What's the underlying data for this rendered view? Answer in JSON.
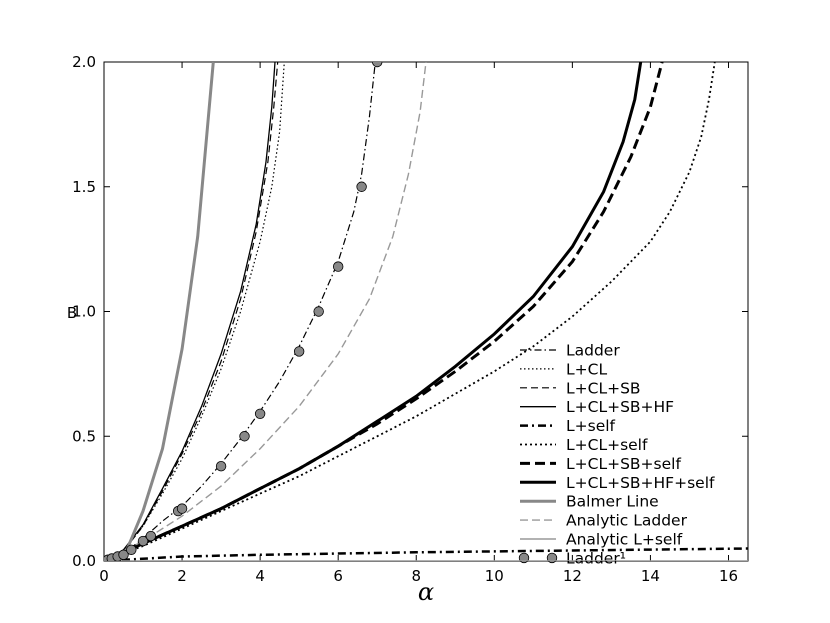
{
  "chart_data": {
    "type": "line",
    "xlabel": "α",
    "ylabel": "B",
    "xlim": [
      0,
      16.5
    ],
    "ylim": [
      0,
      2.0
    ],
    "x_ticks": [
      "0",
      "2",
      "4",
      "6",
      "8",
      "10",
      "12",
      "14",
      "16"
    ],
    "y_ticks": [
      "0.0",
      "0.5",
      "1.0",
      "1.5",
      "2.0"
    ],
    "grid": false,
    "legend_position": "bottom-right",
    "series": [
      {
        "name": "Ladder",
        "style": "dashdot-thin",
        "color": "#000000",
        "points": [
          [
            0,
            0
          ],
          [
            0.5,
            0.03
          ],
          [
            1,
            0.09
          ],
          [
            1.5,
            0.16
          ],
          [
            2,
            0.22
          ],
          [
            2.5,
            0.3
          ],
          [
            3,
            0.39
          ],
          [
            3.5,
            0.49
          ],
          [
            4,
            0.6
          ],
          [
            4.5,
            0.72
          ],
          [
            5,
            0.86
          ],
          [
            5.5,
            1.02
          ],
          [
            6,
            1.2
          ],
          [
            6.4,
            1.4
          ],
          [
            6.6,
            1.55
          ],
          [
            6.8,
            1.78
          ],
          [
            6.95,
            2.0
          ]
        ]
      },
      {
        "name": "L+CL",
        "style": "dotted-thin",
        "color": "#000000",
        "points": [
          [
            0,
            0
          ],
          [
            0.5,
            0.04
          ],
          [
            1,
            0.14
          ],
          [
            1.5,
            0.27
          ],
          [
            2,
            0.41
          ],
          [
            2.5,
            0.58
          ],
          [
            3,
            0.77
          ],
          [
            3.5,
            1.0
          ],
          [
            4,
            1.28
          ],
          [
            4.3,
            1.5
          ],
          [
            4.5,
            1.72
          ],
          [
            4.62,
            2.0
          ]
        ]
      },
      {
        "name": "L+CL+SB",
        "style": "dashed-thin",
        "color": "#000000",
        "points": [
          [
            0,
            0
          ],
          [
            0.5,
            0.04
          ],
          [
            1,
            0.14
          ],
          [
            1.5,
            0.28
          ],
          [
            2,
            0.43
          ],
          [
            2.5,
            0.6
          ],
          [
            3,
            0.8
          ],
          [
            3.5,
            1.05
          ],
          [
            3.9,
            1.32
          ],
          [
            4.2,
            1.6
          ],
          [
            4.35,
            1.82
          ],
          [
            4.45,
            2.0
          ]
        ]
      },
      {
        "name": "L+CL+SB+HF",
        "style": "solid-thin",
        "color": "#000000",
        "points": [
          [
            0,
            0
          ],
          [
            0.5,
            0.045
          ],
          [
            1,
            0.145
          ],
          [
            1.5,
            0.29
          ],
          [
            2,
            0.44
          ],
          [
            2.5,
            0.62
          ],
          [
            3,
            0.83
          ],
          [
            3.5,
            1.08
          ],
          [
            3.9,
            1.35
          ],
          [
            4.15,
            1.6
          ],
          [
            4.3,
            1.82
          ],
          [
            4.38,
            2.0
          ]
        ]
      },
      {
        "name": "L+self",
        "style": "dashdot-thick",
        "color": "#000000",
        "points": [
          [
            0,
            0.0
          ],
          [
            2,
            0.018
          ],
          [
            4,
            0.025
          ],
          [
            8,
            0.035
          ],
          [
            12,
            0.042
          ],
          [
            16.5,
            0.05
          ]
        ]
      },
      {
        "name": "L+CL+self",
        "style": "dotted-thick",
        "color": "#000000",
        "points": [
          [
            0,
            0
          ],
          [
            1,
            0.06
          ],
          [
            2,
            0.13
          ],
          [
            3,
            0.2
          ],
          [
            4,
            0.27
          ],
          [
            5,
            0.34
          ],
          [
            6,
            0.42
          ],
          [
            7,
            0.5
          ],
          [
            8,
            0.58
          ],
          [
            9,
            0.67
          ],
          [
            10,
            0.76
          ],
          [
            11,
            0.86
          ],
          [
            12,
            0.98
          ],
          [
            13,
            1.12
          ],
          [
            14,
            1.28
          ],
          [
            14.5,
            1.4
          ],
          [
            15,
            1.56
          ],
          [
            15.3,
            1.7
          ],
          [
            15.5,
            1.85
          ],
          [
            15.65,
            2.0
          ]
        ]
      },
      {
        "name": "L+CL+SB+self",
        "style": "dashed-thick",
        "color": "#000000",
        "points": [
          [
            0,
            0
          ],
          [
            1,
            0.07
          ],
          [
            2,
            0.14
          ],
          [
            3,
            0.21
          ],
          [
            4,
            0.29
          ],
          [
            5,
            0.37
          ],
          [
            6,
            0.46
          ],
          [
            7,
            0.55
          ],
          [
            8,
            0.65
          ],
          [
            9,
            0.76
          ],
          [
            10,
            0.88
          ],
          [
            11,
            1.02
          ],
          [
            12,
            1.2
          ],
          [
            12.8,
            1.4
          ],
          [
            13.5,
            1.62
          ],
          [
            14,
            1.82
          ],
          [
            14.3,
            2.0
          ]
        ]
      },
      {
        "name": "L+CL+SB+HF+self",
        "style": "solid-thick",
        "color": "#000000",
        "points": [
          [
            0,
            0
          ],
          [
            1,
            0.07
          ],
          [
            2,
            0.14
          ],
          [
            3,
            0.21
          ],
          [
            4,
            0.29
          ],
          [
            5,
            0.37
          ],
          [
            6,
            0.46
          ],
          [
            7,
            0.56
          ],
          [
            8,
            0.66
          ],
          [
            9,
            0.78
          ],
          [
            10,
            0.91
          ],
          [
            11,
            1.06
          ],
          [
            12,
            1.26
          ],
          [
            12.8,
            1.48
          ],
          [
            13.3,
            1.68
          ],
          [
            13.6,
            1.85
          ],
          [
            13.75,
            2.0
          ]
        ]
      },
      {
        "name": "Balmer Line",
        "style": "solid-gray-thick",
        "color": "#888888",
        "points": [
          [
            0.3,
            0
          ],
          [
            0.6,
            0.05
          ],
          [
            1.0,
            0.2
          ],
          [
            1.5,
            0.45
          ],
          [
            2.0,
            0.85
          ],
          [
            2.4,
            1.3
          ],
          [
            2.8,
            2.0
          ]
        ]
      },
      {
        "name": "Analytic Ladder",
        "style": "dashed-gray",
        "color": "#999999",
        "points": [
          [
            0,
            0
          ],
          [
            1,
            0.08
          ],
          [
            2,
            0.18
          ],
          [
            3,
            0.3
          ],
          [
            4,
            0.45
          ],
          [
            5,
            0.62
          ],
          [
            6,
            0.83
          ],
          [
            6.8,
            1.05
          ],
          [
            7.4,
            1.3
          ],
          [
            7.8,
            1.55
          ],
          [
            8.1,
            1.8
          ],
          [
            8.25,
            2.0
          ]
        ]
      },
      {
        "name": "Analytic L+self",
        "style": "solid-gray-thin",
        "color": "#999999",
        "points": [
          [
            0,
            0.0
          ],
          [
            16.5,
            0.0
          ]
        ]
      },
      {
        "name": "Ladder¹",
        "style": "markers",
        "color": "#888888",
        "points": [
          [
            0.1,
            0.005
          ],
          [
            0.2,
            0.01
          ],
          [
            0.35,
            0.018
          ],
          [
            0.5,
            0.025
          ],
          [
            0.7,
            0.045
          ],
          [
            1.0,
            0.08
          ],
          [
            1.2,
            0.1
          ],
          [
            1.9,
            0.2
          ],
          [
            2.0,
            0.21
          ],
          [
            3.0,
            0.38
          ],
          [
            3.6,
            0.5
          ],
          [
            4.0,
            0.59
          ],
          [
            5.0,
            0.84
          ],
          [
            5.5,
            1.0
          ],
          [
            6.0,
            1.18
          ],
          [
            6.6,
            1.5
          ],
          [
            7.0,
            2.0
          ]
        ]
      }
    ]
  }
}
